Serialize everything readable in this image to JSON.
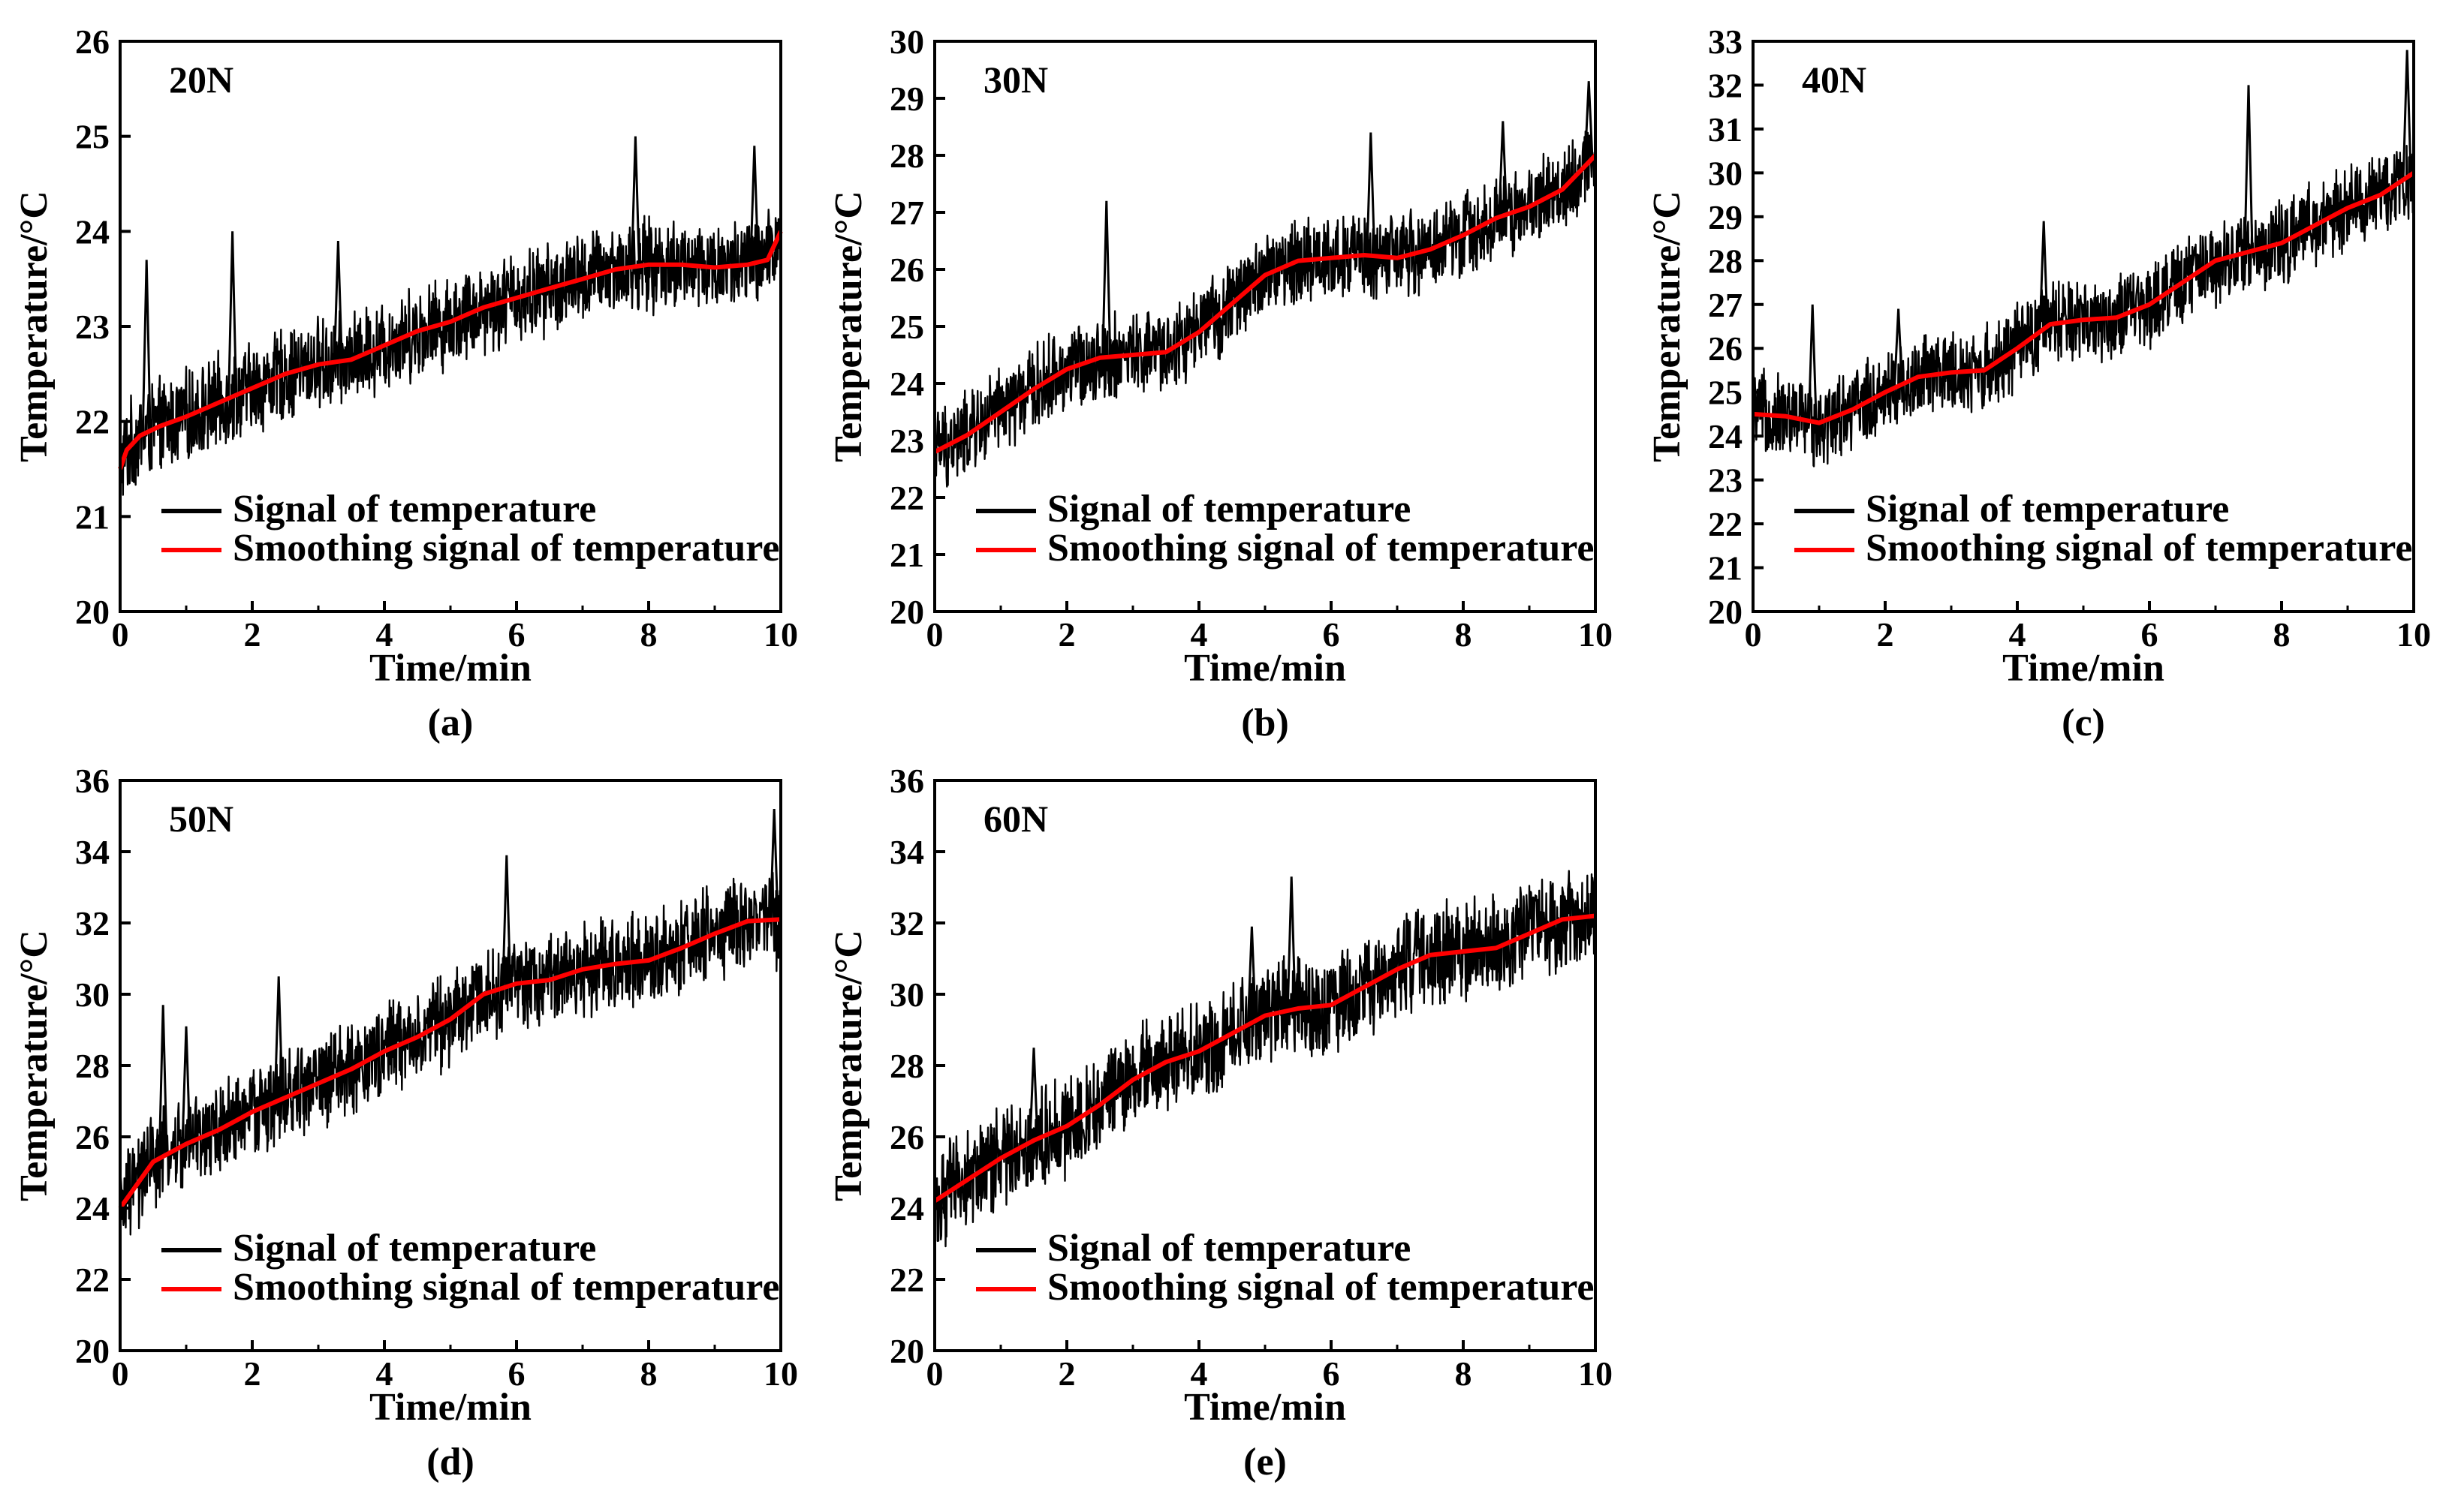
{
  "figure": {
    "background": "#ffffff",
    "signal_color": "#000000",
    "smooth_color": "#ff0000"
  },
  "chart_data": [
    {
      "type": "line",
      "panel": "(a)",
      "label": "20N",
      "xlabel": "Time/min",
      "ylabel": "Temperature/°C",
      "xlim": [
        0,
        10
      ],
      "ylim": [
        20,
        26
      ],
      "xticks": [
        "0",
        "2",
        "4",
        "6",
        "8",
        "10"
      ],
      "yticks": [
        "20",
        "21",
        "22",
        "23",
        "24",
        "25",
        "26"
      ],
      "legend": [
        "Signal of temperature",
        "Smoothing signal of temperature"
      ],
      "series": [
        {
          "name": "Smoothing signal of temperature",
          "x": [
            0,
            0.1,
            0.3,
            0.6,
            1.0,
            1.5,
            2.0,
            2.5,
            3.0,
            3.5,
            4.0,
            4.5,
            5.0,
            5.5,
            6.0,
            6.5,
            7.0,
            7.5,
            8.0,
            8.5,
            9.0,
            9.5,
            9.8,
            10.0
          ],
          "y": [
            21.5,
            21.7,
            21.85,
            21.95,
            22.05,
            22.2,
            22.35,
            22.5,
            22.6,
            22.65,
            22.8,
            22.95,
            23.05,
            23.2,
            23.3,
            23.4,
            23.5,
            23.6,
            23.65,
            23.65,
            23.62,
            23.65,
            23.7,
            24.0
          ]
        },
        {
          "name": "Signal of temperature",
          "base": [
            21.5,
            21.7,
            21.85,
            21.95,
            22.05,
            22.2,
            22.35,
            22.5,
            22.6,
            22.65,
            22.8,
            22.95,
            23.05,
            23.2,
            23.3,
            23.4,
            23.5,
            23.6,
            23.65,
            23.65,
            23.62,
            23.65,
            23.7,
            24.0
          ],
          "amp": 0.55,
          "spikes": [
            [
              0.4,
              23.7
            ],
            [
              1.7,
              24.0
            ],
            [
              3.3,
              23.9
            ],
            [
              7.8,
              25.0
            ],
            [
              9.6,
              24.9
            ]
          ]
        }
      ]
    },
    {
      "type": "line",
      "panel": "(b)",
      "label": "30N",
      "xlabel": "Time/min",
      "ylabel": "Temperature/°C",
      "xlim": [
        0,
        10
      ],
      "ylim": [
        20,
        30
      ],
      "xticks": [
        "0",
        "2",
        "4",
        "6",
        "8",
        "10"
      ],
      "yticks": [
        "20",
        "21",
        "22",
        "23",
        "24",
        "25",
        "26",
        "27",
        "28",
        "29",
        "30"
      ],
      "legend": [
        "Signal of temperature",
        "Smoothing signal of temperature"
      ],
      "series": [
        {
          "name": "Smoothing signal of temperature",
          "x": [
            0,
            0.5,
            1.0,
            1.5,
            2.0,
            2.5,
            3.0,
            3.5,
            4.0,
            4.5,
            5.0,
            5.5,
            6.0,
            6.5,
            7.0,
            7.5,
            8.0,
            8.5,
            9.0,
            9.5,
            10.0
          ],
          "y": [
            22.8,
            23.1,
            23.5,
            23.9,
            24.25,
            24.45,
            24.5,
            24.55,
            24.9,
            25.4,
            25.9,
            26.15,
            26.2,
            26.25,
            26.2,
            26.35,
            26.6,
            26.9,
            27.1,
            27.4,
            28.0
          ]
        },
        {
          "name": "Signal of temperature",
          "base": [
            22.8,
            23.1,
            23.5,
            23.9,
            24.25,
            24.45,
            24.5,
            24.55,
            24.9,
            25.4,
            25.9,
            26.15,
            26.2,
            26.25,
            26.2,
            26.35,
            26.6,
            26.9,
            27.1,
            27.4,
            28.0
          ],
          "amp": 0.85,
          "spikes": [
            [
              2.6,
              27.2
            ],
            [
              6.6,
              28.4
            ],
            [
              8.6,
              28.6
            ],
            [
              9.9,
              29.3
            ]
          ]
        }
      ]
    },
    {
      "type": "line",
      "panel": "(c)",
      "label": "40N",
      "xlabel": "Time/min",
      "ylabel": "Temperature/°C",
      "xlim": [
        0,
        10
      ],
      "ylim": [
        20,
        33
      ],
      "xticks": [
        "0",
        "2",
        "4",
        "6",
        "8",
        "10"
      ],
      "yticks": [
        "20",
        "21",
        "22",
        "23",
        "24",
        "25",
        "26",
        "27",
        "28",
        "29",
        "30",
        "31",
        "32",
        "33"
      ],
      "legend": [
        "Signal of temperature",
        "Smoothing signal of temperature"
      ],
      "series": [
        {
          "name": "Smoothing signal of temperature",
          "x": [
            0,
            0.5,
            1.0,
            1.5,
            2.0,
            2.5,
            3.0,
            3.5,
            4.0,
            4.5,
            5.0,
            5.5,
            6.0,
            6.5,
            7.0,
            7.5,
            8.0,
            8.5,
            9.0,
            9.5,
            10.0
          ],
          "y": [
            24.5,
            24.45,
            24.3,
            24.6,
            25.0,
            25.35,
            25.45,
            25.5,
            26.0,
            26.55,
            26.65,
            26.7,
            27.0,
            27.5,
            28.0,
            28.2,
            28.4,
            28.8,
            29.2,
            29.5,
            30.0
          ]
        },
        {
          "name": "Signal of temperature",
          "base": [
            24.5,
            24.45,
            24.3,
            24.6,
            25.0,
            25.35,
            25.45,
            25.5,
            26.0,
            26.55,
            26.65,
            26.7,
            27.0,
            27.5,
            28.0,
            28.2,
            28.4,
            28.8,
            29.2,
            29.5,
            30.0
          ],
          "amp": 1.1,
          "spikes": [
            [
              0.9,
              27.0
            ],
            [
              2.2,
              26.9
            ],
            [
              4.4,
              28.9
            ],
            [
              7.5,
              32.0
            ],
            [
              9.9,
              32.8
            ]
          ]
        }
      ]
    },
    {
      "type": "line",
      "panel": "(d)",
      "label": "50N",
      "xlabel": "Time/min",
      "ylabel": "Temperature/°C",
      "xlim": [
        0,
        10
      ],
      "ylim": [
        20,
        36
      ],
      "xticks": [
        "0",
        "2",
        "4",
        "6",
        "8",
        "10"
      ],
      "yticks": [
        "20",
        "22",
        "24",
        "26",
        "28",
        "30",
        "32",
        "34",
        "36"
      ],
      "legend": [
        "Signal of temperature",
        "Smoothing signal of temperature"
      ],
      "series": [
        {
          "name": "Smoothing signal of temperature",
          "x": [
            0,
            0.5,
            1.0,
            1.5,
            2.0,
            2.5,
            3.0,
            3.5,
            4.0,
            4.5,
            5.0,
            5.5,
            6.0,
            6.5,
            7.0,
            7.5,
            8.0,
            8.5,
            9.0,
            9.5,
            10.0
          ],
          "y": [
            24.0,
            25.3,
            25.8,
            26.2,
            26.7,
            27.1,
            27.5,
            27.9,
            28.4,
            28.8,
            29.3,
            30.0,
            30.3,
            30.4,
            30.7,
            30.85,
            30.95,
            31.3,
            31.7,
            32.05,
            32.1
          ]
        },
        {
          "name": "Signal of temperature",
          "base": [
            24.0,
            25.3,
            25.8,
            26.2,
            26.7,
            27.1,
            27.5,
            27.9,
            28.4,
            28.8,
            29.3,
            30.0,
            30.3,
            30.4,
            30.7,
            30.85,
            30.95,
            31.3,
            31.7,
            32.05,
            32.1
          ],
          "amp": 1.5,
          "spikes": [
            [
              0.65,
              29.7
            ],
            [
              1.0,
              29.1
            ],
            [
              2.4,
              30.5
            ],
            [
              5.85,
              33.9
            ],
            [
              9.9,
              35.2
            ]
          ]
        }
      ]
    },
    {
      "type": "line",
      "panel": "(e)",
      "label": "60N",
      "xlabel": "Time/min",
      "ylabel": "Temperature/°C",
      "xlim": [
        0,
        10
      ],
      "ylim": [
        20,
        36
      ],
      "xticks": [
        "0",
        "2",
        "4",
        "6",
        "8",
        "10"
      ],
      "yticks": [
        "20",
        "22",
        "24",
        "26",
        "28",
        "30",
        "32",
        "34",
        "36"
      ],
      "legend": [
        "Signal of temperature",
        "Smoothing signal of temperature"
      ],
      "series": [
        {
          "name": "Smoothing signal of temperature",
          "x": [
            0,
            0.5,
            1.0,
            1.5,
            2.0,
            2.5,
            3.0,
            3.5,
            4.0,
            4.5,
            5.0,
            5.5,
            6.0,
            6.5,
            7.0,
            7.5,
            8.0,
            8.5,
            9.0,
            9.5,
            10.0
          ],
          "y": [
            24.2,
            24.8,
            25.4,
            25.9,
            26.3,
            26.9,
            27.6,
            28.1,
            28.4,
            28.9,
            29.4,
            29.6,
            29.7,
            30.2,
            30.7,
            31.1,
            31.2,
            31.3,
            31.7,
            32.1,
            32.2
          ]
        },
        {
          "name": "Signal of temperature",
          "base": [
            24.2,
            24.8,
            25.4,
            25.9,
            26.3,
            26.9,
            27.6,
            28.1,
            28.4,
            28.9,
            29.4,
            29.6,
            29.7,
            30.2,
            30.7,
            31.1,
            31.2,
            31.3,
            31.7,
            32.1,
            32.2
          ],
          "amp": 1.6,
          "spikes": [
            [
              1.5,
              28.5
            ],
            [
              4.8,
              31.9
            ],
            [
              5.4,
              33.3
            ]
          ]
        }
      ]
    }
  ]
}
